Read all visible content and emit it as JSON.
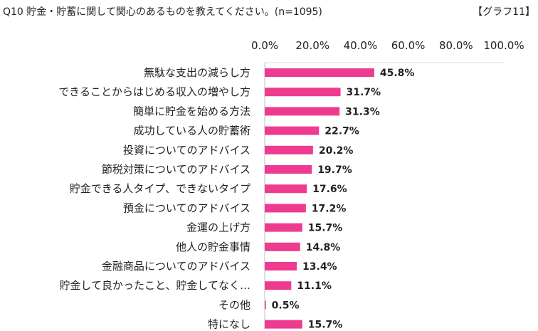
{
  "header": {
    "title": "Q10 貯金・貯蓄に関して関心のあるものを教えてください。(n=1095)",
    "tag": "【グラフ11】"
  },
  "chart_data": {
    "type": "bar",
    "orientation": "horizontal",
    "title": "Q10 貯金・貯蓄に関して関心のあるものを教えてください。(n=1095)",
    "xlabel": "",
    "ylabel": "",
    "xlim": [
      0,
      100
    ],
    "x_ticks": [
      "0.0%",
      "20.0%",
      "40.0%",
      "60.0%",
      "80.0%",
      "100.0%"
    ],
    "x_tick_values": [
      0,
      20,
      40,
      60,
      80,
      100
    ],
    "x_axis_position": "top",
    "grid": false,
    "bar_color": "#ee3b8f",
    "categories": [
      "無駄な支出の減らし方",
      "できることからはじめる収入の増やし方",
      "簡単に貯金を始める方法",
      "成功している人の貯蓄術",
      "投資についてのアドバイス",
      "節税対策についてのアドバイス",
      "貯金できる人タイプ、できないタイプ",
      "預金についてのアドバイス",
      "金運の上げ方",
      "他人の貯金事情",
      "金融商品についてのアドバイス",
      "貯金して良かったこと、貯金してなく…",
      "その他",
      "特になし"
    ],
    "values": [
      45.8,
      31.7,
      31.3,
      22.7,
      20.2,
      19.7,
      17.6,
      17.2,
      15.7,
      14.8,
      13.4,
      11.1,
      0.5,
      15.7
    ],
    "value_labels": [
      "45.8%",
      "31.7%",
      "31.3%",
      "22.7%",
      "20.2%",
      "19.7%",
      "17.6%",
      "17.2%",
      "15.7%",
      "14.8%",
      "13.4%",
      "11.1%",
      "0.5%",
      "15.7%"
    ]
  }
}
